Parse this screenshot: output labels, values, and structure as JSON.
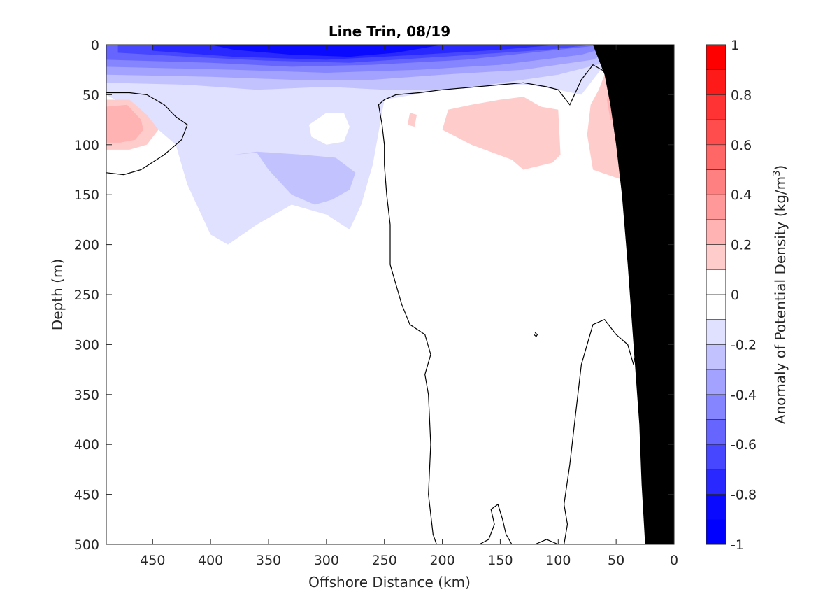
{
  "chart_data": {
    "type": "heatmap",
    "title": "Line Trin, 08/19",
    "xlabel": "Offshore Distance (km)",
    "ylabel": "Depth (m)",
    "colorbar_label_main": "Anomaly of Potential Density (kg/m",
    "colorbar_label_sup": "3",
    "colorbar_label_end": ")",
    "xlim": [
      490,
      0
    ],
    "ylim": [
      0,
      500
    ],
    "x_ticks": [
      450,
      400,
      350,
      300,
      250,
      200,
      150,
      100,
      50,
      0
    ],
    "x_tick_labels": [
      "450",
      "400",
      "350",
      "300",
      "250",
      "200",
      "150",
      "100",
      "50",
      "0"
    ],
    "y_ticks": [
      0,
      50,
      100,
      150,
      200,
      250,
      300,
      350,
      400,
      450,
      500
    ],
    "y_tick_labels": [
      "0",
      "50",
      "100",
      "150",
      "200",
      "250",
      "300",
      "350",
      "400",
      "450",
      "500"
    ],
    "clim": [
      -1,
      1
    ],
    "colorbar_ticks": [
      1,
      0.8,
      0.6,
      0.4,
      0.2,
      0,
      -0.2,
      -0.4,
      -0.6,
      -0.8,
      -1
    ],
    "colorbar_tick_labels": [
      "1",
      "0.8",
      "0.6",
      "0.4",
      "0.2",
      "0",
      "-0.2",
      "-0.4",
      "-0.6",
      "-0.8",
      "-1"
    ],
    "colorbar_levels": [
      {
        "lo": 0.9,
        "hi": 1.0,
        "color": "#ff0000"
      },
      {
        "lo": 0.8,
        "hi": 0.9,
        "color": "#ff1a1a"
      },
      {
        "lo": 0.7,
        "hi": 0.8,
        "color": "#ff3333"
      },
      {
        "lo": 0.6,
        "hi": 0.7,
        "color": "#ff4d4d"
      },
      {
        "lo": 0.5,
        "hi": 0.6,
        "color": "#ff6666"
      },
      {
        "lo": 0.4,
        "hi": 0.5,
        "color": "#ff8080"
      },
      {
        "lo": 0.3,
        "hi": 0.4,
        "color": "#ff9999"
      },
      {
        "lo": 0.2,
        "hi": 0.3,
        "color": "#ffb3b3"
      },
      {
        "lo": 0.1,
        "hi": 0.2,
        "color": "#ffcccc"
      },
      {
        "lo": 0.0,
        "hi": 0.1,
        "color": "#ffffff"
      },
      {
        "lo": -0.1,
        "hi": 0.0,
        "color": "#ffffff"
      },
      {
        "lo": -0.2,
        "hi": -0.1,
        "color": "#e0e0ff"
      },
      {
        "lo": -0.3,
        "hi": -0.2,
        "color": "#c2c2ff"
      },
      {
        "lo": -0.4,
        "hi": -0.3,
        "color": "#a3a3ff"
      },
      {
        "lo": -0.5,
        "hi": -0.4,
        "color": "#8585ff"
      },
      {
        "lo": -0.6,
        "hi": -0.5,
        "color": "#6666ff"
      },
      {
        "lo": -0.7,
        "hi": -0.6,
        "color": "#4747ff"
      },
      {
        "lo": -0.8,
        "hi": -0.7,
        "color": "#2929ff"
      },
      {
        "lo": -0.9,
        "hi": -0.8,
        "color": "#0a0aff"
      },
      {
        "lo": -1.0,
        "hi": -0.9,
        "color": "#0000ff"
      }
    ],
    "regions": [
      {
        "name": "neg-0.15-broad",
        "color": "#e0e0ff",
        "points": [
          [
            490,
            0
          ],
          [
            0,
            0
          ],
          [
            0,
            30
          ],
          [
            30,
            25
          ],
          [
            40,
            10
          ],
          [
            60,
            20
          ],
          [
            80,
            50
          ],
          [
            100,
            45
          ],
          [
            125,
            40
          ],
          [
            150,
            40
          ],
          [
            200,
            45
          ],
          [
            250,
            55
          ],
          [
            260,
            120
          ],
          [
            270,
            160
          ],
          [
            280,
            185
          ],
          [
            300,
            170
          ],
          [
            330,
            160
          ],
          [
            360,
            180
          ],
          [
            385,
            200
          ],
          [
            400,
            190
          ],
          [
            420,
            140
          ],
          [
            430,
            100
          ],
          [
            460,
            70
          ],
          [
            490,
            50
          ]
        ]
      },
      {
        "name": "neg-0.25-patch",
        "color": "#c2c2ff",
        "points": [
          [
            380,
            110
          ],
          [
            360,
            108
          ],
          [
            350,
            125
          ],
          [
            330,
            150
          ],
          [
            310,
            160
          ],
          [
            295,
            155
          ],
          [
            280,
            145
          ],
          [
            275,
            128
          ],
          [
            292,
            113
          ],
          [
            320,
            110
          ],
          [
            360,
            107
          ]
        ]
      },
      {
        "name": "neg-0.25-surface",
        "color": "#c2c2ff",
        "points": [
          [
            490,
            0
          ],
          [
            30,
            0
          ],
          [
            40,
            8
          ],
          [
            60,
            18
          ],
          [
            100,
            30
          ],
          [
            160,
            40
          ],
          [
            200,
            45
          ],
          [
            250,
            45
          ],
          [
            300,
            42
          ],
          [
            360,
            45
          ],
          [
            420,
            40
          ],
          [
            490,
            38
          ]
        ]
      },
      {
        "name": "neg-0.35",
        "color": "#a3a3ff",
        "points": [
          [
            490,
            0
          ],
          [
            45,
            0
          ],
          [
            70,
            15
          ],
          [
            130,
            25
          ],
          [
            200,
            30
          ],
          [
            260,
            35
          ],
          [
            330,
            35
          ],
          [
            400,
            32
          ],
          [
            490,
            30
          ]
        ]
      },
      {
        "name": "neg-0.45",
        "color": "#8585ff",
        "points": [
          [
            490,
            0
          ],
          [
            50,
            0
          ],
          [
            80,
            10
          ],
          [
            150,
            20
          ],
          [
            220,
            25
          ],
          [
            300,
            28
          ],
          [
            380,
            25
          ],
          [
            490,
            22
          ]
        ]
      },
      {
        "name": "neg-0.55",
        "color": "#6666ff",
        "points": [
          [
            490,
            0
          ],
          [
            60,
            0
          ],
          [
            100,
            5
          ],
          [
            180,
            15
          ],
          [
            260,
            20
          ],
          [
            330,
            22
          ],
          [
            400,
            18
          ],
          [
            490,
            15
          ]
        ]
      },
      {
        "name": "neg-0.65",
        "color": "#4747ff",
        "points": [
          [
            480,
            0
          ],
          [
            70,
            0
          ],
          [
            110,
            5
          ],
          [
            200,
            12
          ],
          [
            280,
            18
          ],
          [
            350,
            16
          ],
          [
            420,
            12
          ],
          [
            480,
            8
          ]
        ]
      },
      {
        "name": "neg-0.75",
        "color": "#2929ff",
        "points": [
          [
            450,
            0
          ],
          [
            100,
            0
          ],
          [
            150,
            5
          ],
          [
            220,
            10
          ],
          [
            300,
            15
          ],
          [
            380,
            12
          ],
          [
            450,
            6
          ]
        ]
      },
      {
        "name": "neg-0.85",
        "color": "#0a0aff",
        "points": [
          [
            400,
            0
          ],
          [
            200,
            0
          ],
          [
            240,
            8
          ],
          [
            280,
            12
          ],
          [
            330,
            10
          ],
          [
            380,
            5
          ]
        ]
      },
      {
        "name": "white-hole",
        "color": "#ffffff",
        "points": [
          [
            300,
            68
          ],
          [
            285,
            68
          ],
          [
            280,
            82
          ],
          [
            285,
            97
          ],
          [
            300,
            100
          ],
          [
            313,
            92
          ],
          [
            315,
            80
          ]
        ]
      },
      {
        "name": "pos-0.15-left",
        "color": "#ffcccc",
        "points": [
          [
            490,
            55
          ],
          [
            470,
            55
          ],
          [
            455,
            70
          ],
          [
            445,
            85
          ],
          [
            455,
            100
          ],
          [
            470,
            105
          ],
          [
            490,
            105
          ]
        ]
      },
      {
        "name": "pos-0.25-left",
        "color": "#ffb3b3",
        "points": [
          [
            490,
            62
          ],
          [
            472,
            60
          ],
          [
            460,
            75
          ],
          [
            458,
            85
          ],
          [
            465,
            95
          ],
          [
            478,
            98
          ],
          [
            490,
            98
          ]
        ]
      },
      {
        "name": "pos-0.15-dot",
        "color": "#ffcccc",
        "points": [
          [
            228,
            68
          ],
          [
            222,
            70
          ],
          [
            224,
            82
          ],
          [
            230,
            80
          ]
        ]
      },
      {
        "name": "pos-0.15-mid",
        "color": "#ffcccc",
        "points": [
          [
            195,
            65
          ],
          [
            175,
            60
          ],
          [
            150,
            55
          ],
          [
            130,
            52
          ],
          [
            115,
            62
          ],
          [
            100,
            65
          ],
          [
            98,
            110
          ],
          [
            105,
            118
          ],
          [
            130,
            125
          ],
          [
            140,
            115
          ],
          [
            175,
            100
          ],
          [
            200,
            85
          ]
        ]
      },
      {
        "name": "pos-0.15-right",
        "color": "#ffcccc",
        "points": [
          [
            65,
            45
          ],
          [
            60,
            30
          ],
          [
            45,
            15
          ],
          [
            25,
            20
          ],
          [
            15,
            40
          ],
          [
            10,
            80
          ],
          [
            15,
            115
          ],
          [
            25,
            130
          ],
          [
            45,
            135
          ],
          [
            70,
            125
          ],
          [
            75,
            90
          ],
          [
            72,
            60
          ]
        ]
      },
      {
        "name": "pos-0.25-right",
        "color": "#ffb3b3",
        "points": [
          [
            55,
            40
          ],
          [
            45,
            28
          ],
          [
            35,
            30
          ],
          [
            30,
            45
          ],
          [
            33,
            65
          ],
          [
            45,
            80
          ],
          [
            55,
            75
          ],
          [
            58,
            55
          ]
        ]
      }
    ],
    "zero_contours": [
      {
        "name": "contour-left",
        "points": [
          [
            490,
            48
          ],
          [
            470,
            48
          ],
          [
            455,
            50
          ],
          [
            440,
            60
          ],
          [
            430,
            72
          ],
          [
            420,
            80
          ],
          [
            425,
            95
          ],
          [
            440,
            110
          ],
          [
            460,
            125
          ],
          [
            475,
            130
          ],
          [
            490,
            128
          ]
        ]
      },
      {
        "name": "contour-main",
        "points": [
          [
            0,
            5
          ],
          [
            10,
            10
          ],
          [
            20,
            18
          ],
          [
            35,
            25
          ],
          [
            55,
            30
          ],
          [
            70,
            20
          ],
          [
            80,
            35
          ],
          [
            90,
            60
          ],
          [
            100,
            45
          ],
          [
            110,
            42
          ],
          [
            130,
            38
          ],
          [
            150,
            40
          ],
          [
            200,
            45
          ],
          [
            220,
            48
          ],
          [
            240,
            50
          ],
          [
            250,
            55
          ],
          [
            255,
            60
          ],
          [
            252,
            80
          ],
          [
            250,
            100
          ],
          [
            250,
            120
          ],
          [
            248,
            150
          ],
          [
            245,
            180
          ],
          [
            245,
            220
          ],
          [
            240,
            240
          ],
          [
            235,
            260
          ],
          [
            228,
            280
          ],
          [
            215,
            290
          ],
          [
            210,
            310
          ],
          [
            215,
            330
          ],
          [
            212,
            350
          ],
          [
            210,
            400
          ],
          [
            212,
            450
          ],
          [
            208,
            490
          ],
          [
            205,
            500
          ]
        ]
      },
      {
        "name": "contour-right",
        "points": [
          [
            95,
            500
          ],
          [
            92,
            480
          ],
          [
            95,
            460
          ],
          [
            90,
            420
          ],
          [
            88,
            400
          ],
          [
            85,
            370
          ],
          [
            82,
            340
          ],
          [
            80,
            320
          ],
          [
            75,
            300
          ],
          [
            70,
            280
          ],
          [
            60,
            275
          ],
          [
            50,
            290
          ],
          [
            40,
            300
          ],
          [
            35,
            320
          ],
          [
            30,
            290
          ],
          [
            25,
            260
          ],
          [
            20,
            240
          ],
          [
            10,
            220
          ]
        ]
      },
      {
        "name": "contour-spike",
        "points": [
          [
            168,
            500
          ],
          [
            160,
            495
          ],
          [
            155,
            480
          ],
          [
            158,
            465
          ],
          [
            152,
            460
          ],
          [
            148,
            475
          ],
          [
            145,
            490
          ],
          [
            140,
            500
          ]
        ]
      },
      {
        "name": "contour-notch",
        "points": [
          [
            120,
            500
          ],
          [
            110,
            495
          ],
          [
            100,
            500
          ]
        ]
      },
      {
        "name": "contour-tiny",
        "points": [
          [
            120,
            288
          ],
          [
            118,
            290
          ],
          [
            119,
            292
          ],
          [
            121,
            290
          ]
        ]
      }
    ],
    "bathymetry": {
      "color": "#000000",
      "points": [
        [
          0,
          0
        ],
        [
          0,
          500
        ],
        [
          25,
          500
        ],
        [
          28,
          440
        ],
        [
          30,
          380
        ],
        [
          35,
          300
        ],
        [
          40,
          220
        ],
        [
          45,
          150
        ],
        [
          50,
          100
        ],
        [
          55,
          60
        ],
        [
          60,
          30
        ],
        [
          70,
          0
        ]
      ]
    }
  }
}
